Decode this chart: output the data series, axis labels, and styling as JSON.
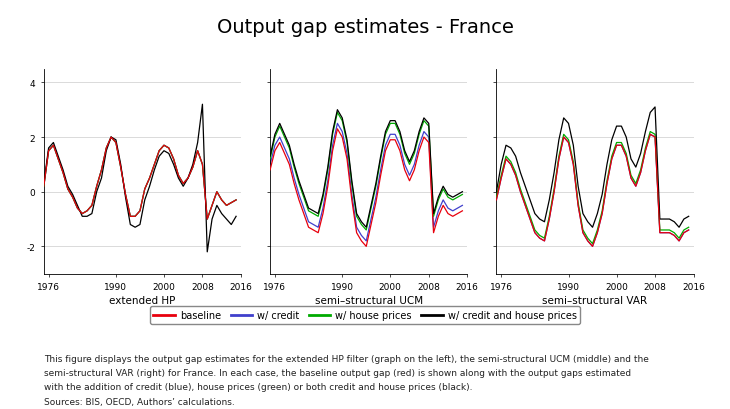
{
  "title": "Output gap estimates - France",
  "title_fontsize": 14,
  "subtitle_labels": [
    "extended HP",
    "semi–structural UCM",
    "semi–structural VAR"
  ],
  "ylim": [
    -3.0,
    4.5
  ],
  "yticks": [
    -2,
    0,
    2,
    4
  ],
  "xticks": [
    1976,
    1990,
    2000,
    2008,
    2016
  ],
  "colors": {
    "baseline": "#e8000d",
    "credit": "#4040cc",
    "house": "#00aa00",
    "both": "#000000"
  },
  "legend_labels": [
    "baseline",
    "w/ credit",
    "w/ house prices",
    "w/ credit and house prices"
  ],
  "footnote_line1": "This figure displays the output gap estimates for the extended HP filter (graph on the left), the semi-structural UCM (middle) and the",
  "footnote_line2": "semi-structural VAR (right) for France. In each case, the baseline output gap (red) is shown along with the output gaps estimated",
  "footnote_line3": "with the addition of credit (blue), house prices (green) or both credit and house prices (black).",
  "footnote_line4": "Sources: BIS, OECD, Authors’ calculations.",
  "footnote_fontsize": 6.5,
  "background_color": "#ffffff",
  "hp_years": [
    1975,
    1976,
    1977,
    1978,
    1979,
    1980,
    1981,
    1982,
    1983,
    1984,
    1985,
    1986,
    1987,
    1988,
    1989,
    1990,
    1991,
    1992,
    1993,
    1994,
    1995,
    1996,
    1997,
    1998,
    1999,
    2000,
    2001,
    2002,
    2003,
    2004,
    2005,
    2006,
    2007,
    2008,
    2009,
    2010,
    2011,
    2012,
    2013,
    2014,
    2015
  ],
  "hp_baseline": [
    0.2,
    1.5,
    1.7,
    1.2,
    0.7,
    0.1,
    -0.2,
    -0.6,
    -0.8,
    -0.7,
    -0.5,
    0.2,
    0.8,
    1.6,
    2.0,
    1.8,
    0.9,
    -0.1,
    -0.9,
    -0.9,
    -0.7,
    0.1,
    0.5,
    1.0,
    1.5,
    1.7,
    1.6,
    1.2,
    0.6,
    0.3,
    0.5,
    0.9,
    1.5,
    1.0,
    -1.0,
    -0.5,
    0.0,
    -0.3,
    -0.5,
    -0.4,
    -0.3
  ],
  "hp_credit": [
    0.2,
    1.5,
    1.7,
    1.2,
    0.7,
    0.1,
    -0.2,
    -0.6,
    -0.8,
    -0.7,
    -0.5,
    0.2,
    0.8,
    1.6,
    2.0,
    1.8,
    0.9,
    -0.1,
    -0.9,
    -0.9,
    -0.7,
    0.1,
    0.5,
    1.0,
    1.5,
    1.7,
    1.6,
    1.2,
    0.6,
    0.3,
    0.5,
    0.9,
    1.5,
    1.0,
    -1.0,
    -0.5,
    0.0,
    -0.3,
    -0.5,
    -0.4,
    -0.3
  ],
  "hp_house": [
    0.2,
    1.5,
    1.7,
    1.2,
    0.7,
    0.1,
    -0.2,
    -0.6,
    -0.8,
    -0.7,
    -0.5,
    0.2,
    0.8,
    1.6,
    2.0,
    1.8,
    0.9,
    -0.1,
    -0.9,
    -0.9,
    -0.7,
    0.1,
    0.5,
    1.0,
    1.5,
    1.7,
    1.6,
    1.2,
    0.6,
    0.3,
    0.5,
    0.9,
    1.5,
    1.0,
    -1.0,
    -0.5,
    0.0,
    -0.3,
    -0.5,
    -0.4,
    -0.3
  ],
  "hp_both": [
    0.3,
    1.6,
    1.8,
    1.3,
    0.8,
    0.2,
    -0.1,
    -0.5,
    -0.9,
    -0.9,
    -0.8,
    0.0,
    0.5,
    1.5,
    2.0,
    1.9,
    1.0,
    -0.2,
    -1.2,
    -1.3,
    -1.2,
    -0.3,
    0.2,
    0.8,
    1.3,
    1.5,
    1.4,
    1.0,
    0.5,
    0.2,
    0.5,
    1.0,
    1.8,
    3.2,
    -2.2,
    -1.0,
    -0.5,
    -0.8,
    -1.0,
    -1.2,
    -0.9
  ],
  "ucm_years": [
    1975,
    1976,
    1977,
    1978,
    1979,
    1980,
    1981,
    1982,
    1983,
    1984,
    1985,
    1986,
    1987,
    1988,
    1989,
    1990,
    1991,
    1992,
    1993,
    1994,
    1995,
    1996,
    1997,
    1998,
    1999,
    2000,
    2001,
    2002,
    2003,
    2004,
    2005,
    2006,
    2007,
    2008,
    2009,
    2010,
    2011,
    2012,
    2013,
    2014,
    2015
  ],
  "ucm_baseline": [
    0.8,
    1.5,
    1.8,
    1.4,
    1.0,
    0.3,
    -0.3,
    -0.8,
    -1.3,
    -1.4,
    -1.5,
    -0.8,
    0.2,
    1.5,
    2.3,
    2.0,
    1.2,
    -0.3,
    -1.5,
    -1.8,
    -2.0,
    -1.2,
    -0.4,
    0.6,
    1.5,
    1.9,
    1.9,
    1.5,
    0.8,
    0.4,
    0.8,
    1.5,
    2.0,
    1.8,
    -1.5,
    -0.9,
    -0.5,
    -0.8,
    -0.9,
    -0.8,
    -0.7
  ],
  "ucm_credit": [
    1.0,
    1.7,
    2.0,
    1.6,
    1.2,
    0.5,
    -0.1,
    -0.6,
    -1.1,
    -1.2,
    -1.3,
    -0.6,
    0.4,
    1.7,
    2.5,
    2.2,
    1.4,
    -0.1,
    -1.3,
    -1.6,
    -1.8,
    -1.0,
    -0.2,
    0.8,
    1.7,
    2.1,
    2.1,
    1.7,
    1.0,
    0.6,
    1.0,
    1.7,
    2.2,
    2.0,
    -1.3,
    -0.7,
    -0.3,
    -0.6,
    -0.7,
    -0.6,
    -0.5
  ],
  "ucm_house": [
    1.2,
    2.0,
    2.4,
    2.0,
    1.6,
    0.9,
    0.3,
    -0.2,
    -0.7,
    -0.8,
    -0.9,
    -0.2,
    0.8,
    2.1,
    2.9,
    2.6,
    1.8,
    0.3,
    -0.9,
    -1.2,
    -1.4,
    -0.6,
    0.2,
    1.2,
    2.1,
    2.5,
    2.5,
    2.1,
    1.4,
    1.0,
    1.4,
    2.1,
    2.6,
    2.4,
    -0.9,
    -0.3,
    0.1,
    -0.2,
    -0.3,
    -0.2,
    -0.1
  ],
  "ucm_both": [
    1.3,
    2.1,
    2.5,
    2.1,
    1.7,
    1.0,
    0.4,
    -0.1,
    -0.6,
    -0.7,
    -0.8,
    -0.1,
    0.9,
    2.2,
    3.0,
    2.7,
    1.9,
    0.4,
    -0.8,
    -1.1,
    -1.3,
    -0.5,
    0.3,
    1.3,
    2.2,
    2.6,
    2.6,
    2.2,
    1.5,
    1.1,
    1.5,
    2.2,
    2.7,
    2.5,
    -0.8,
    -0.2,
    0.2,
    -0.1,
    -0.2,
    -0.1,
    0.0
  ],
  "var_years": [
    1975,
    1976,
    1977,
    1978,
    1979,
    1980,
    1981,
    1982,
    1983,
    1984,
    1985,
    1986,
    1987,
    1988,
    1989,
    1990,
    1991,
    1992,
    1993,
    1994,
    1995,
    1996,
    1997,
    1998,
    1999,
    2000,
    2001,
    2002,
    2003,
    2004,
    2005,
    2006,
    2007,
    2008,
    2009,
    2010,
    2011,
    2012,
    2013,
    2014,
    2015
  ],
  "var_baseline": [
    -0.3,
    0.5,
    1.2,
    1.0,
    0.6,
    0.0,
    -0.5,
    -1.0,
    -1.5,
    -1.7,
    -1.8,
    -1.0,
    0.0,
    1.2,
    2.0,
    1.8,
    1.0,
    -0.5,
    -1.5,
    -1.8,
    -2.0,
    -1.5,
    -0.8,
    0.3,
    1.2,
    1.7,
    1.7,
    1.3,
    0.5,
    0.2,
    0.7,
    1.5,
    2.1,
    2.0,
    -1.5,
    -1.5,
    -1.5,
    -1.6,
    -1.8,
    -1.5,
    -1.4
  ],
  "var_credit": [
    -0.3,
    0.5,
    1.2,
    1.0,
    0.6,
    0.0,
    -0.5,
    -1.0,
    -1.5,
    -1.7,
    -1.8,
    -1.0,
    0.0,
    1.2,
    2.0,
    1.8,
    1.0,
    -0.5,
    -1.5,
    -1.8,
    -2.0,
    -1.5,
    -0.8,
    0.3,
    1.2,
    1.7,
    1.7,
    1.3,
    0.5,
    0.2,
    0.7,
    1.5,
    2.1,
    2.0,
    -1.5,
    -1.5,
    -1.5,
    -1.6,
    -1.8,
    -1.5,
    -1.4
  ],
  "var_house": [
    -0.2,
    0.6,
    1.3,
    1.1,
    0.7,
    0.1,
    -0.4,
    -0.9,
    -1.4,
    -1.6,
    -1.7,
    -0.9,
    0.1,
    1.3,
    2.1,
    1.9,
    1.1,
    -0.4,
    -1.4,
    -1.7,
    -1.9,
    -1.4,
    -0.7,
    0.4,
    1.3,
    1.8,
    1.8,
    1.4,
    0.6,
    0.3,
    0.8,
    1.6,
    2.2,
    2.1,
    -1.4,
    -1.4,
    -1.4,
    -1.5,
    -1.7,
    -1.4,
    -1.3
  ],
  "var_both": [
    0.0,
    1.0,
    1.7,
    1.6,
    1.3,
    0.7,
    0.2,
    -0.3,
    -0.8,
    -1.0,
    -1.1,
    -0.3,
    0.7,
    1.9,
    2.7,
    2.5,
    1.7,
    0.2,
    -0.8,
    -1.1,
    -1.3,
    -0.8,
    -0.1,
    1.0,
    1.9,
    2.4,
    2.4,
    2.0,
    1.2,
    0.9,
    1.4,
    2.2,
    2.9,
    3.1,
    -1.0,
    -1.0,
    -1.0,
    -1.1,
    -1.3,
    -1.0,
    -0.9
  ]
}
